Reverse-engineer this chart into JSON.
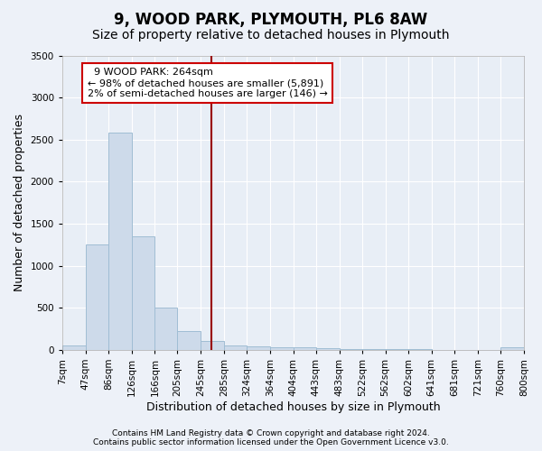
{
  "title": "9, WOOD PARK, PLYMOUTH, PL6 8AW",
  "subtitle": "Size of property relative to detached houses in Plymouth",
  "xlabel": "Distribution of detached houses by size in Plymouth",
  "ylabel": "Number of detached properties",
  "bar_color": "#cddaea",
  "bar_edge_color": "#a0bdd4",
  "vline_x": 264,
  "vline_color": "#990000",
  "annotation_title": "9 WOOD PARK: 264sqm",
  "annotation_line1": "← 98% of detached houses are smaller (5,891)",
  "annotation_line2": "2% of semi-detached houses are larger (146) →",
  "annotation_box_color": "#cc0000",
  "footer_line1": "Contains HM Land Registry data © Crown copyright and database right 2024.",
  "footer_line2": "Contains public sector information licensed under the Open Government Licence v3.0.",
  "bins": [
    7,
    47,
    86,
    126,
    166,
    205,
    245,
    285,
    324,
    364,
    404,
    443,
    483,
    522,
    562,
    602,
    641,
    681,
    721,
    760,
    800
  ],
  "counts": [
    50,
    1250,
    2580,
    1350,
    500,
    220,
    110,
    55,
    45,
    35,
    25,
    20,
    10,
    8,
    5,
    4,
    3,
    2,
    2,
    25
  ],
  "ylim": [
    0,
    3500
  ],
  "yticks": [
    0,
    500,
    1000,
    1500,
    2000,
    2500,
    3000,
    3500
  ],
  "bg_color": "#edf1f8",
  "plot_bg_color": "#e8eef6",
  "grid_color": "#ffffff",
  "title_fontsize": 12,
  "subtitle_fontsize": 10,
  "axis_label_fontsize": 9,
  "tick_fontsize": 7.5
}
